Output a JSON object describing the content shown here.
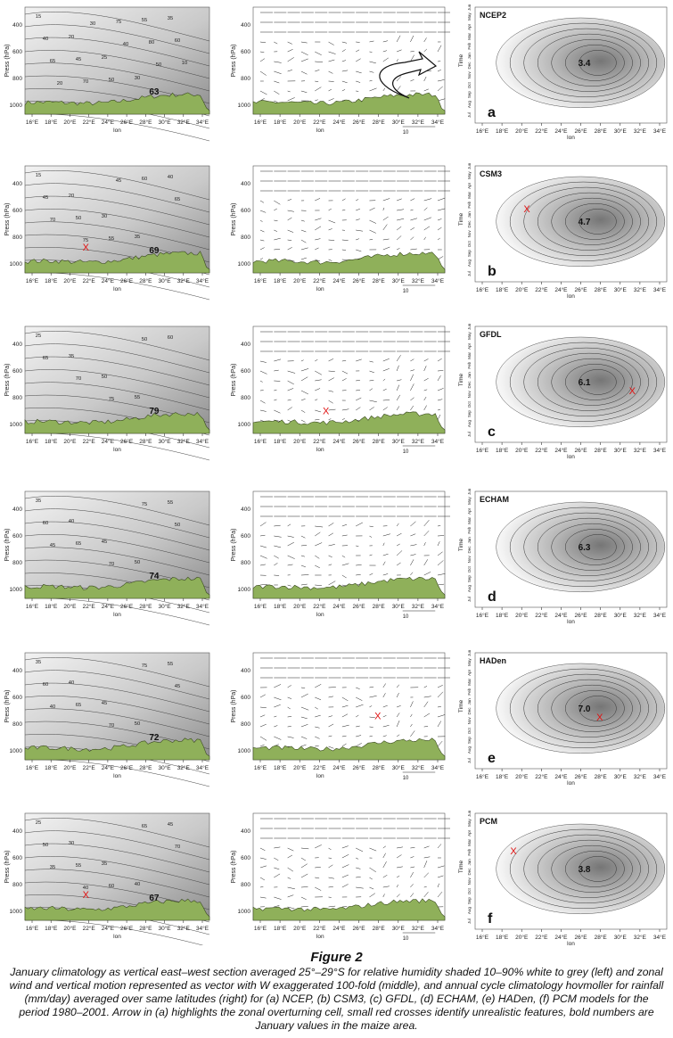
{
  "figure_label": "Figure 2",
  "caption": "January climatology as vertical east–west section averaged 25°–29°S for relative humidity shaded 10–90% white to grey (left) and zonal wind and vertical motion represented as vector with W exaggerated 100-fold (middle), and annual cycle climatology hovmoller for rainfall (mm/day) averaged over same latitudes (right) for (a) NCEP, (b) CSM3, (c) GFDL, (d) ECHAM, (e) HADen, (f) PCM models for the period 1980–2001. Arrow in (a) highlights the zonal overturning cell, small red crosses identify unrealistic features, bold numbers are January values in the maize area.",
  "axes": {
    "y_label": "Press (hPa)",
    "x_label": "lon",
    "p_ticks": [
      "400",
      "600",
      "800",
      "1000"
    ],
    "lon_ticks_left": [
      "16°E",
      "18°E",
      "20°E",
      "22°E",
      "24°E",
      "26°E",
      "28°E",
      "30°E",
      "32°E",
      "34°E"
    ],
    "lon_ticks_mid": [
      "16°E",
      "18°E",
      "20°E",
      "22°E",
      "24°E",
      "26°E",
      "28°E",
      "30°E",
      "32°E",
      "34°E"
    ],
    "lon_ticks_right": [
      "16°E",
      "18°E",
      "20°E",
      "22°E",
      "24°E",
      "26°E",
      "28°E",
      "30°E",
      "32°E",
      "34°E"
    ],
    "time_label": "Time",
    "months": [
      "Jul",
      "Aug",
      "Sep",
      "Oct",
      "Nov",
      "Dec",
      "Jan",
      "Feb",
      "Mar",
      "Apr",
      "May",
      "Jun"
    ],
    "vector_scale": "10",
    "cross_mark": "X"
  },
  "colors": {
    "terrain": "#8fb05a",
    "terrain_edge": "#3a4a20",
    "cross": "#e01010"
  },
  "panels": [
    {
      "letter": "a",
      "model": "NCEP2",
      "rh_value": "63",
      "rain_value": "3.4",
      "cross_left": false,
      "cross_mid": false,
      "cross_right": false,
      "arrow": true,
      "rh_labels": [
        "15",
        "20",
        "25",
        "30",
        "35",
        "40",
        "45",
        "50",
        "55",
        "60",
        "65",
        "70",
        "75",
        "80",
        "10",
        "20",
        "30",
        "40",
        "50"
      ]
    },
    {
      "letter": "b",
      "model": "CSM3",
      "rh_value": "69",
      "rain_value": "4.7",
      "cross_left": true,
      "cross_mid": false,
      "cross_right": true,
      "arrow": false,
      "rh_labels": [
        "15",
        "20",
        "30",
        "35",
        "40",
        "45",
        "50",
        "55",
        "60",
        "65",
        "70",
        "75",
        "45"
      ]
    },
    {
      "letter": "c",
      "model": "GFDL",
      "rh_value": "79",
      "rain_value": "6.1",
      "cross_left": false,
      "cross_mid": true,
      "cross_right": true,
      "arrow": false,
      "rh_labels": [
        "25",
        "35",
        "50",
        "55",
        "60",
        "65",
        "70",
        "75",
        "50"
      ]
    },
    {
      "letter": "d",
      "model": "ECHAM",
      "rh_value": "74",
      "rain_value": "6.3",
      "cross_left": false,
      "cross_mid": false,
      "cross_right": false,
      "arrow": false,
      "rh_labels": [
        "35",
        "40",
        "45",
        "50",
        "55",
        "60",
        "65",
        "70",
        "75",
        "50",
        "45"
      ]
    },
    {
      "letter": "e",
      "model": "HADen",
      "rh_value": "72",
      "rain_value": "7.0",
      "cross_left": false,
      "cross_mid": true,
      "cross_right": true,
      "arrow": false,
      "rh_labels": [
        "35",
        "40",
        "45",
        "50",
        "55",
        "60",
        "65",
        "70",
        "75",
        "45",
        "40"
      ]
    },
    {
      "letter": "f",
      "model": "PCM",
      "rh_value": "67",
      "rain_value": "3.8",
      "cross_left": true,
      "cross_mid": false,
      "cross_right": true,
      "arrow": false,
      "rh_labels": [
        "25",
        "30",
        "35",
        "40",
        "45",
        "50",
        "55",
        "60",
        "65",
        "70",
        "35",
        "40"
      ]
    }
  ]
}
